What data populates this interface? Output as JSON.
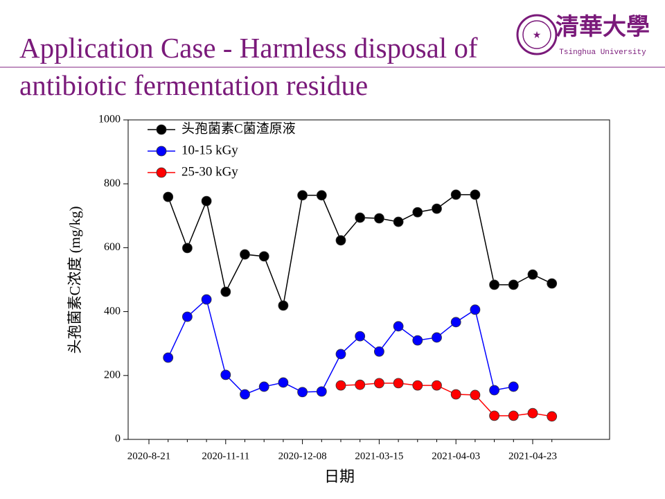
{
  "header": {
    "title": "Application Case - Harmless disposal of antibiotic fermentation residue",
    "logo_text": "清華大學",
    "logo_subtitle": "Tsinghua University"
  },
  "chart_data": {
    "type": "line",
    "x_label": "日期",
    "y_label": "头孢菌素C浓度 (mg/kg)",
    "categories": [
      "2020-8-21",
      null,
      null,
      null,
      "2020-11-11",
      null,
      null,
      null,
      "2020-12-08",
      null,
      null,
      null,
      "2021-03-15",
      null,
      null,
      null,
      "2021-04-03",
      null,
      null,
      null,
      "2021-04-23",
      null
    ],
    "series": [
      {
        "name": "头孢菌素C菌渣原液",
        "color": "#000000",
        "values": [
          null,
          759,
          599,
          746,
          462,
          579,
          573,
          419,
          764,
          764,
          623,
          694,
          692,
          681,
          711,
          722,
          766,
          766,
          484,
          484,
          516,
          488
        ]
      },
      {
        "name": "10-15 kGy",
        "color": "#0000ff",
        "values": [
          null,
          256,
          384,
          438,
          202,
          141,
          165,
          178,
          148,
          150,
          267,
          323,
          275,
          354,
          310,
          319,
          367,
          406,
          154,
          165,
          null,
          null
        ]
      },
      {
        "name": "25-30 kGy",
        "color": "#ff0000",
        "values": [
          null,
          null,
          null,
          null,
          null,
          null,
          null,
          null,
          null,
          null,
          169,
          171,
          176,
          176,
          169,
          169,
          141,
          139,
          74,
          74,
          82,
          72
        ]
      }
    ],
    "ylim": [
      0,
      1000
    ],
    "yticks": [
      0,
      200,
      400,
      600,
      800,
      1000
    ],
    "legend": "upper-left"
  }
}
